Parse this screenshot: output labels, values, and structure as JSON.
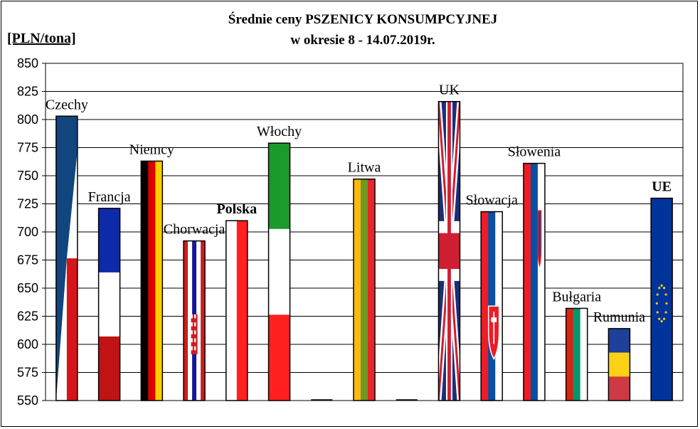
{
  "chart_data": {
    "type": "bar",
    "title": [
      "Średnie ceny PSZENICY  KONSUMPCYJNEJ",
      "w okresie 8 - 14.07.2019r."
    ],
    "ylabel": "[PLN/tona]",
    "xlabel": "",
    "ylim": [
      550,
      850
    ],
    "yticks": [
      550,
      575,
      600,
      625,
      650,
      675,
      700,
      725,
      750,
      775,
      800,
      825,
      850
    ],
    "grid": true,
    "legend": "none",
    "categories": [
      "Czechy",
      "Francja",
      "Niemcy",
      "Chorwacja",
      "Polska",
      "Włochy",
      "",
      "Litwa",
      "",
      "UK",
      "Słowacja",
      "Słowenia",
      "Bułgaria",
      "Rumunia",
      "UE"
    ],
    "values": [
      803,
      721,
      763,
      692,
      710,
      779,
      550,
      747,
      550,
      816,
      718,
      761,
      632,
      614,
      730
    ],
    "bar_styles": [
      "flag-cz",
      "flag-fr",
      "flag-de",
      "flag-hr",
      "flag-pl",
      "flag-it",
      "none",
      "flag-lt",
      "none",
      "flag-uk",
      "flag-sk",
      "flag-si",
      "flag-bg",
      "flag-ro",
      "flag-eu"
    ],
    "label_colors": [
      "#000000",
      "#000000",
      "#000000",
      "#000000",
      "#000000",
      "#000000",
      "#000000",
      "#000000",
      "#000000",
      "#000000",
      "#000000",
      "#000000",
      "#000000",
      "#000000",
      "#e8141c"
    ],
    "label_bold": [
      false,
      false,
      false,
      false,
      true,
      false,
      false,
      false,
      false,
      false,
      false,
      false,
      false,
      false,
      true
    ]
  }
}
